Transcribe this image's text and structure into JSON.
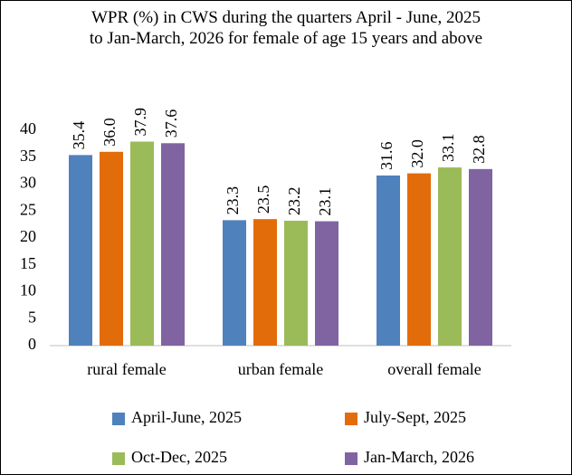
{
  "chart_data": {
    "type": "bar",
    "title": "WPR (%) in CWS during the quarters  April - June, 2025 to Jan-March, 2026 for female of age 15 years and above",
    "categories": [
      "rural female",
      "urban female",
      "overall female"
    ],
    "series": [
      {
        "name": "April-June, 2025",
        "color": "#4f81bd",
        "values": [
          35.4,
          23.3,
          31.6
        ],
        "value_labels": [
          "35.4",
          "23.3",
          "31.6"
        ]
      },
      {
        "name": "July-Sept, 2025",
        "color": "#e36c0a",
        "values": [
          36.0,
          23.5,
          32.0
        ],
        "value_labels": [
          "36.0",
          "23.5",
          "32.0"
        ]
      },
      {
        "name": "Oct-Dec, 2025",
        "color": "#9bbb59",
        "values": [
          37.9,
          23.2,
          33.1
        ],
        "value_labels": [
          "37.9",
          "23.2",
          "33.1"
        ]
      },
      {
        "name": "Jan-March, 2026",
        "color": "#8064a2",
        "values": [
          37.6,
          23.1,
          32.8
        ],
        "value_labels": [
          "37.6",
          "23.1",
          "32.8"
        ]
      }
    ],
    "ylim": [
      0,
      40
    ],
    "yticks": [
      0,
      5,
      10,
      15,
      20,
      25,
      30,
      35,
      40
    ],
    "grid": false,
    "legend": "bottom"
  }
}
